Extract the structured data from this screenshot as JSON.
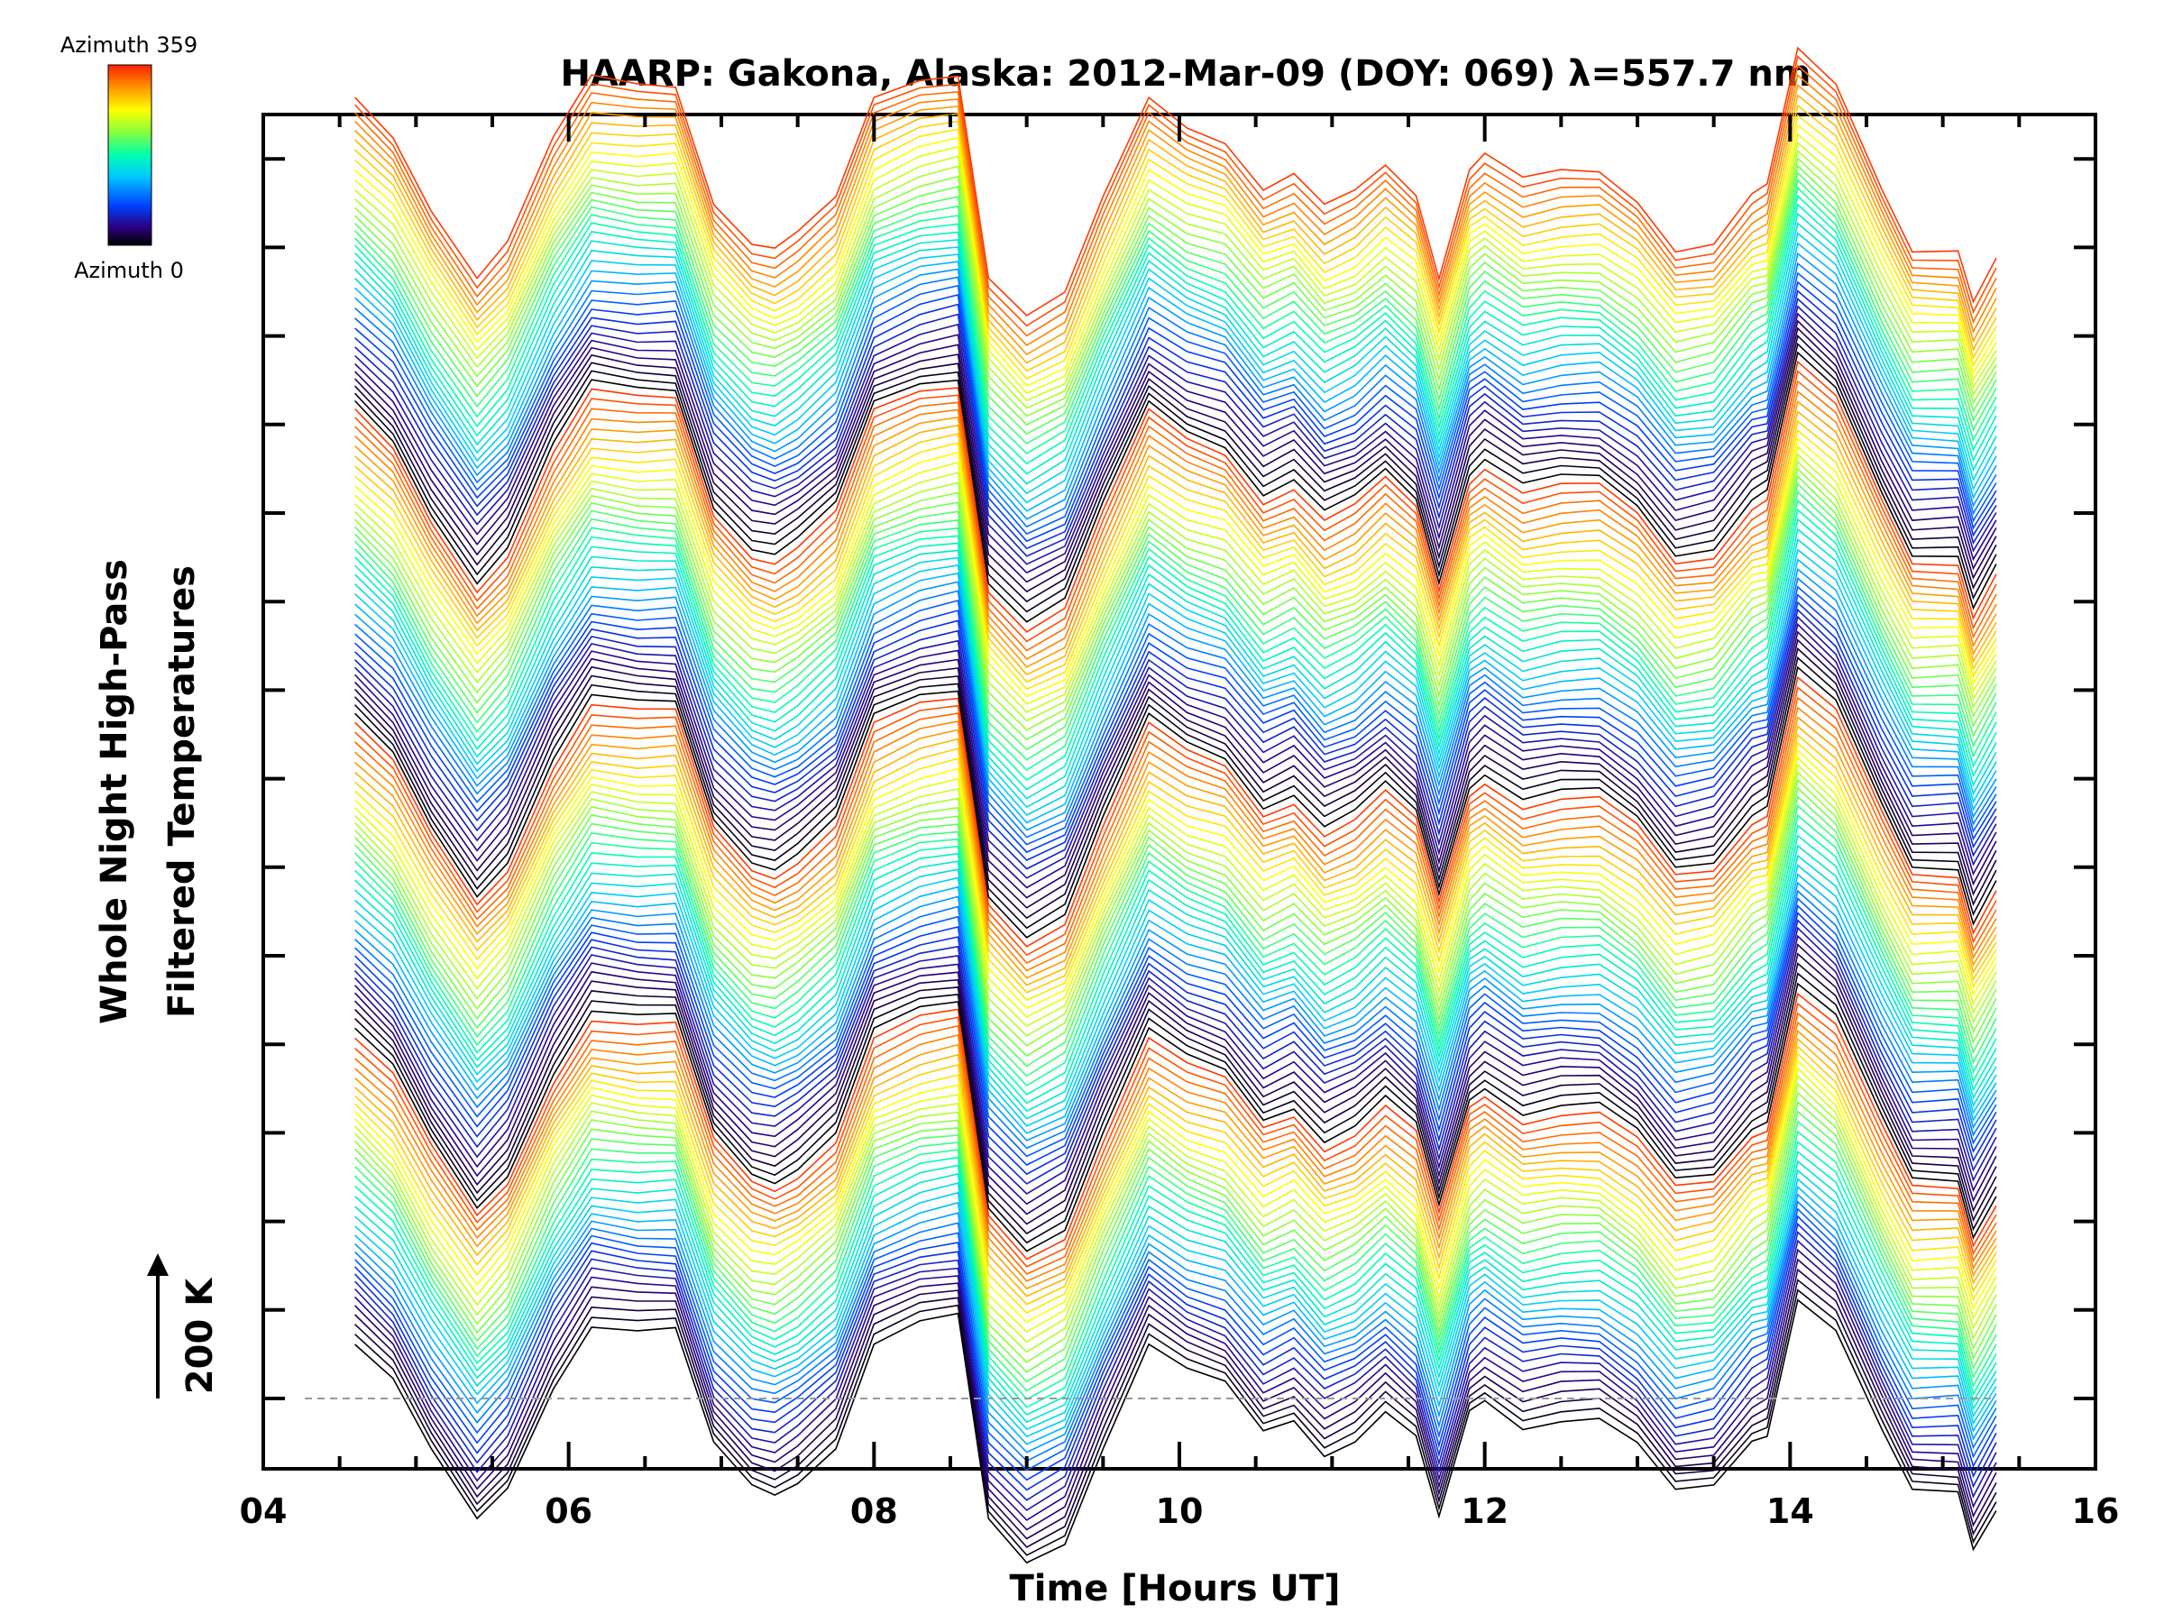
{
  "chart_data": {
    "type": "line",
    "title": "HAARP: Gakona,  Alaska: 2012-Mar-09 (DOY: 069) λ=557.7 nm",
    "xlabel": "Time [Hours UT]",
    "ylabel_line1": "Whole Night High-Pass",
    "ylabel_line2": "Filtered Temperatures",
    "scale_label": "200 K",
    "colorbar": {
      "top_label": "Azimuth 359",
      "bottom_label": "Azimuth 0",
      "colormap": "rainbow",
      "colors": [
        "#000000",
        "#2b0080",
        "#0040ff",
        "#00c8ff",
        "#00ffb0",
        "#80ff40",
        "#ffff00",
        "#ff9000",
        "#ff2000"
      ]
    },
    "xlim": [
      4,
      16
    ],
    "xticks": [
      "04",
      "06",
      "08",
      "10",
      "12",
      "14",
      "16"
    ],
    "grid": false,
    "series_count": 144,
    "azimuth_step_deg": 2.5,
    "offset_per_series_K": 40,
    "baseline_dashed": true,
    "x": [
      4.6,
      4.85,
      5.1,
      5.4,
      5.6,
      5.9,
      6.15,
      6.45,
      6.7,
      6.95,
      7.2,
      7.35,
      7.5,
      7.75,
      8.0,
      8.3,
      8.55,
      8.75,
      9.0,
      9.25,
      9.5,
      9.8,
      10.05,
      10.3,
      10.55,
      10.75,
      10.95,
      11.15,
      11.35,
      11.55,
      11.7,
      11.9,
      12.0,
      12.25,
      12.5,
      12.75,
      13.0,
      13.25,
      13.5,
      13.75,
      13.85,
      14.05,
      14.3,
      14.6,
      14.8,
      15.1,
      15.2,
      15.35
    ],
    "base_profile_K": [
      80,
      25,
      -80,
      -180,
      -130,
      20,
      110,
      100,
      100,
      -70,
      -130,
      -140,
      -120,
      -70,
      80,
      110,
      120,
      -180,
      -240,
      -210,
      -70,
      80,
      40,
      20,
      -50,
      -30,
      -80,
      -60,
      -20,
      -60,
      -180,
      -20,
      0,
      -40,
      -30,
      -30,
      -70,
      -140,
      -130,
      -60,
      -50,
      150,
      100,
      -50,
      -140,
      -140,
      -220,
      -160
    ],
    "notes": []
  }
}
